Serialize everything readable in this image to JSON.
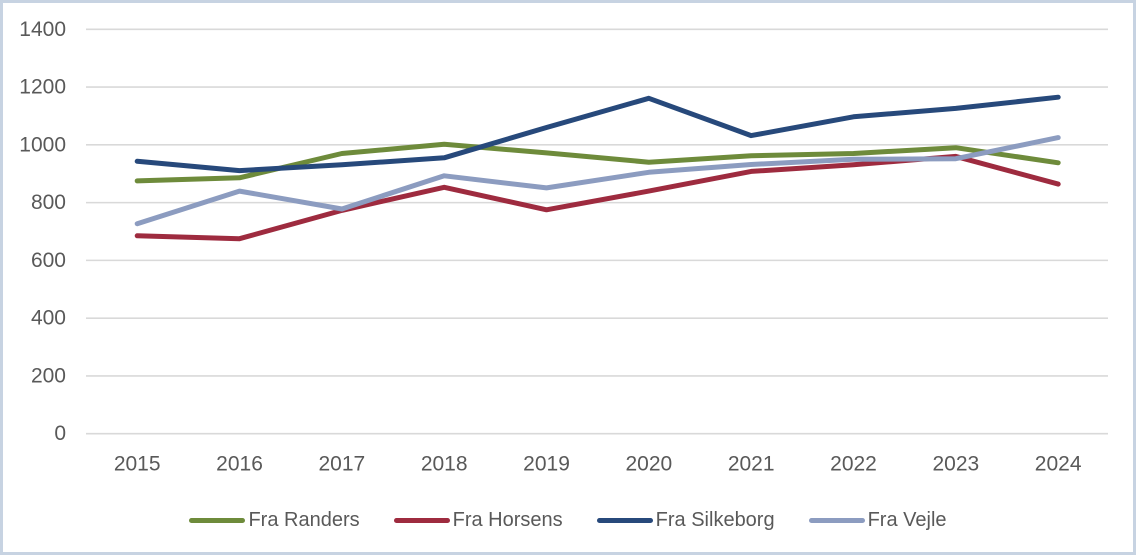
{
  "window": {
    "background": "#FFFFFF",
    "border_color": "#C7D3E2"
  },
  "chart_data": {
    "type": "line",
    "x_labels": [
      "2015",
      "2016",
      "2017",
      "2018",
      "2019",
      "2020",
      "2021",
      "2022",
      "2023",
      "2024"
    ],
    "series": [
      {
        "name": "Fra Randers",
        "color": "#6E8B3B",
        "values": [
          875,
          886,
          970,
          1002,
          972,
          940,
          962,
          970,
          990,
          938
        ]
      },
      {
        "name": "Fra Horsens",
        "color": "#9E2B3F",
        "values": [
          685,
          675,
          773,
          853,
          775,
          840,
          908,
          931,
          960,
          864
        ]
      },
      {
        "name": "Fra Silkeborg",
        "color": "#27497B",
        "values": [
          943,
          911,
          931,
          955,
          1060,
          1161,
          1032,
          1097,
          1126,
          1165
        ]
      },
      {
        "name": "Fra Vejle",
        "color": "#8C9CC0",
        "values": [
          727,
          840,
          778,
          893,
          851,
          905,
          932,
          950,
          952,
          1025
        ]
      }
    ],
    "ylim": [
      0,
      1400
    ],
    "ytick_step": 200,
    "ytick_labels": [
      "0",
      "200",
      "400",
      "600",
      "800",
      "1000",
      "1200",
      "1400"
    ],
    "grid": true,
    "grid_color": "#D9D9D9",
    "axis_text_color": "#595959",
    "legend_position": "bottom",
    "title": "",
    "xlabel": "",
    "ylabel": ""
  }
}
